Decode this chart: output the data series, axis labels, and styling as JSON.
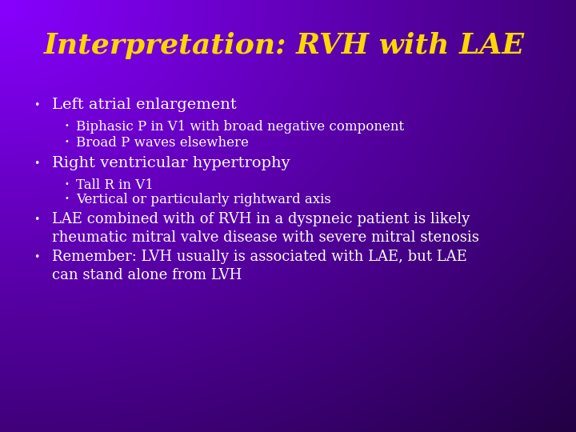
{
  "title": "Interpretation: RVH with LAE",
  "title_color": "#FFD700",
  "title_fontsize": 26,
  "bg_bright": "#8800FF",
  "bg_dark": "#220044",
  "bullet1": "Left atrial enlargement",
  "sub1a": "Biphasic P in V1 with broad negative component",
  "sub1b": "Broad P waves elsewhere",
  "bullet2": "Right ventricular hypertrophy",
  "sub2a": "Tall R in V1",
  "sub2b": "Vertical or particularly rightward axis",
  "bullet3": "LAE combined with of RVH in a dyspneic patient is likely\nrheumatic mitral valve disease with severe mitral stenosis",
  "bullet4": "Remember: LVH usually is associated with LAE, but LAE\ncan stand alone from LVH",
  "bullet_color": "#FFFFFF",
  "bullet_fontsize": 14,
  "sub_fontsize": 12,
  "bullet3_fontsize": 13,
  "bullet4_fontsize": 13,
  "small_bullet_char": "•",
  "large_bullet_char": "•"
}
